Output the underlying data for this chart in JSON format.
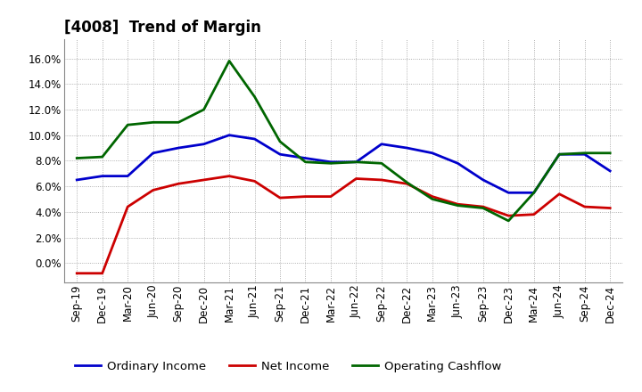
{
  "title": "[4008]  Trend of Margin",
  "x_labels": [
    "Sep-19",
    "Dec-19",
    "Mar-20",
    "Jun-20",
    "Sep-20",
    "Dec-20",
    "Mar-21",
    "Jun-21",
    "Sep-21",
    "Dec-21",
    "Mar-22",
    "Jun-22",
    "Sep-22",
    "Dec-22",
    "Mar-23",
    "Jun-23",
    "Sep-23",
    "Dec-23",
    "Mar-24",
    "Jun-24",
    "Sep-24",
    "Dec-24"
  ],
  "ordinary_income": [
    0.065,
    0.068,
    0.068,
    0.086,
    0.09,
    0.093,
    0.1,
    0.097,
    0.085,
    0.082,
    0.079,
    0.079,
    0.093,
    0.09,
    0.086,
    0.078,
    0.065,
    0.055,
    0.055,
    0.085,
    0.085,
    0.072
  ],
  "net_income": [
    -0.008,
    -0.008,
    0.044,
    0.057,
    0.062,
    0.065,
    0.068,
    0.064,
    0.051,
    0.052,
    0.052,
    0.066,
    0.065,
    0.062,
    0.052,
    0.046,
    0.044,
    0.037,
    0.038,
    0.054,
    0.044,
    0.043
  ],
  "operating_cashflow": [
    0.082,
    0.083,
    0.108,
    0.11,
    0.11,
    0.12,
    0.158,
    0.13,
    0.095,
    0.079,
    0.078,
    0.079,
    0.078,
    0.063,
    0.05,
    0.045,
    0.043,
    0.033,
    0.055,
    0.085,
    0.086,
    0.086
  ],
  "ylim": [
    -0.015,
    0.175
  ],
  "yticks": [
    0.0,
    0.02,
    0.04,
    0.06,
    0.08,
    0.1,
    0.12,
    0.14,
    0.16
  ],
  "line_colors": {
    "ordinary_income": "#0000cc",
    "net_income": "#cc0000",
    "operating_cashflow": "#006600"
  },
  "legend_labels": {
    "ordinary_income": "Ordinary Income",
    "net_income": "Net Income",
    "operating_cashflow": "Operating Cashflow"
  },
  "background_color": "#ffffff",
  "grid_color": "#999999",
  "title_fontsize": 12,
  "tick_fontsize": 8.5,
  "legend_fontsize": 9.5,
  "linewidth": 2.0
}
